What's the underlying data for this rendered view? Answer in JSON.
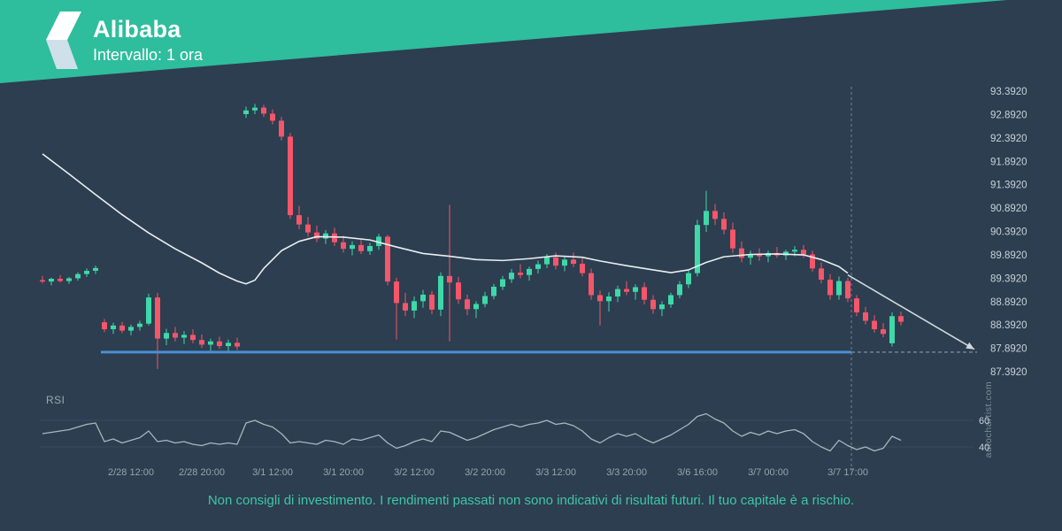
{
  "header": {
    "title": "Alibaba",
    "subtitle": "Intervallo: 1 ora"
  },
  "rsi_label": "RSI",
  "watermark": "autochartist.com",
  "disclaimer": "Non consigli di investimento. I rendimenti passati non sono indicativi di risultati futuri. Il tuo capitale è a rischio.",
  "colors": {
    "background": "#2c3e50",
    "banner": "#2ebd9d",
    "logo_primary": "#ffffff",
    "logo_secondary": "#cfe0ea",
    "bullish": "#3fd8a8",
    "bearish": "#f4566a",
    "ma_line": "#e9eef0",
    "support_line": "#4a8fd4",
    "forecast": "#cfd8dc",
    "muted_line": "#8a98a3",
    "rsi_line": "#aab6bd",
    "axis_text": "#c8d2d8",
    "muted_text": "#97a4ad",
    "disclaimer_text": "#3fc6a6"
  },
  "chart_data": {
    "type": "candlestick",
    "title": "Alibaba",
    "interval": "1 ora",
    "legend_position": "none",
    "grid": "off",
    "price_axis": {
      "max": 93.392,
      "min": 87.392,
      "tick_step": 0.5,
      "tick_labels": [
        "93.3920",
        "92.8920",
        "92.3920",
        "91.8920",
        "91.3920",
        "90.8920",
        "90.3920",
        "89.8920",
        "89.3920",
        "88.8920",
        "88.3920",
        "87.8920",
        "87.3920"
      ]
    },
    "x_axis": {
      "labels": [
        {
          "text": "2/28 12:00",
          "index": 10
        },
        {
          "text": "2/28 20:00",
          "index": 18
        },
        {
          "text": "3/1 12:00",
          "index": 26
        },
        {
          "text": "3/1 20:00",
          "index": 34
        },
        {
          "text": "3/2 12:00",
          "index": 42
        },
        {
          "text": "3/2 20:00",
          "index": 50
        },
        {
          "text": "3/3 12:00",
          "index": 58
        },
        {
          "text": "3/3 20:00",
          "index": 66
        },
        {
          "text": "3/6 16:00",
          "index": 74
        },
        {
          "text": "3/7 00:00",
          "index": 82
        },
        {
          "text": "3/7 17:00",
          "index": 91
        }
      ]
    },
    "candles": [
      [
        89.35,
        89.44,
        89.28,
        89.32
      ],
      [
        89.32,
        89.4,
        89.24,
        89.38
      ],
      [
        89.38,
        89.46,
        89.3,
        89.33
      ],
      [
        89.33,
        89.42,
        89.27,
        89.39
      ],
      [
        89.39,
        89.52,
        89.34,
        89.48
      ],
      [
        89.48,
        89.6,
        89.42,
        89.55
      ],
      [
        89.55,
        89.66,
        89.48,
        89.61
      ],
      [
        88.45,
        88.52,
        88.24,
        88.3
      ],
      [
        88.3,
        88.44,
        88.2,
        88.38
      ],
      [
        88.38,
        88.46,
        88.22,
        88.27
      ],
      [
        88.27,
        88.4,
        88.17,
        88.35
      ],
      [
        88.35,
        88.48,
        88.27,
        88.42
      ],
      [
        88.42,
        89.06,
        88.38,
        88.98
      ],
      [
        88.98,
        89.08,
        87.45,
        88.1
      ],
      [
        88.1,
        88.31,
        87.96,
        88.22
      ],
      [
        88.22,
        88.35,
        88.04,
        88.12
      ],
      [
        88.12,
        88.26,
        87.98,
        88.18
      ],
      [
        88.18,
        88.3,
        88.0,
        88.07
      ],
      [
        88.07,
        88.19,
        87.9,
        87.97
      ],
      [
        87.97,
        88.1,
        87.84,
        88.04
      ],
      [
        88.04,
        88.14,
        87.88,
        87.94
      ],
      [
        87.94,
        88.08,
        87.82,
        88.01
      ],
      [
        88.01,
        88.12,
        87.86,
        87.93
      ],
      [
        92.9,
        93.06,
        92.82,
        92.98
      ],
      [
        92.98,
        93.12,
        92.9,
        93.04
      ],
      [
        93.04,
        93.1,
        92.84,
        92.91
      ],
      [
        92.91,
        93.0,
        92.68,
        92.76
      ],
      [
        92.76,
        92.84,
        92.34,
        92.42
      ],
      [
        92.42,
        92.5,
        90.66,
        90.74
      ],
      [
        90.74,
        90.94,
        90.44,
        90.54
      ],
      [
        90.54,
        90.7,
        90.28,
        90.37
      ],
      [
        90.37,
        90.52,
        90.16,
        90.24
      ],
      [
        90.24,
        90.42,
        90.12,
        90.35
      ],
      [
        90.35,
        90.47,
        90.08,
        90.16
      ],
      [
        90.16,
        90.3,
        89.94,
        90.02
      ],
      [
        90.02,
        90.18,
        89.88,
        90.1
      ],
      [
        90.1,
        90.22,
        89.91,
        89.97
      ],
      [
        89.97,
        90.15,
        89.89,
        90.08
      ],
      [
        90.08,
        90.34,
        90.0,
        90.28
      ],
      [
        90.28,
        90.32,
        89.24,
        89.32
      ],
      [
        89.32,
        89.4,
        88.08,
        88.86
      ],
      [
        88.86,
        89.08,
        88.58,
        88.7
      ],
      [
        88.7,
        89.0,
        88.54,
        88.9
      ],
      [
        88.9,
        89.14,
        88.76,
        89.04
      ],
      [
        89.04,
        89.12,
        88.62,
        88.72
      ],
      [
        88.72,
        89.52,
        88.58,
        89.44
      ],
      [
        89.44,
        90.96,
        88.04,
        89.3
      ],
      [
        89.3,
        89.42,
        88.84,
        88.94
      ],
      [
        88.94,
        89.04,
        88.6,
        88.73
      ],
      [
        88.73,
        88.9,
        88.54,
        88.84
      ],
      [
        88.84,
        89.1,
        88.77,
        89.01
      ],
      [
        89.01,
        89.27,
        88.94,
        89.21
      ],
      [
        89.21,
        89.44,
        89.14,
        89.37
      ],
      [
        89.37,
        89.59,
        89.29,
        89.51
      ],
      [
        89.51,
        89.69,
        89.39,
        89.46
      ],
      [
        89.46,
        89.64,
        89.34,
        89.59
      ],
      [
        89.59,
        89.77,
        89.49,
        89.69
      ],
      [
        89.69,
        89.91,
        89.61,
        89.84
      ],
      [
        89.84,
        89.94,
        89.58,
        89.66
      ],
      [
        89.66,
        89.87,
        89.54,
        89.79
      ],
      [
        89.79,
        89.94,
        89.63,
        89.7
      ],
      [
        89.7,
        89.83,
        89.43,
        89.5
      ],
      [
        89.5,
        89.6,
        88.93,
        89.03
      ],
      [
        89.03,
        89.13,
        88.38,
        88.9
      ],
      [
        88.9,
        89.09,
        88.68,
        89.0
      ],
      [
        89.0,
        89.23,
        88.88,
        89.16
      ],
      [
        89.16,
        89.33,
        89.03,
        89.1
      ],
      [
        89.1,
        89.26,
        88.93,
        89.2
      ],
      [
        89.2,
        89.3,
        88.83,
        88.93
      ],
      [
        88.93,
        89.03,
        88.63,
        88.73
      ],
      [
        88.73,
        88.9,
        88.58,
        88.83
      ],
      [
        88.83,
        89.08,
        88.76,
        89.03
      ],
      [
        89.03,
        89.33,
        88.96,
        89.26
      ],
      [
        89.26,
        89.58,
        89.18,
        89.5
      ],
      [
        89.5,
        90.64,
        89.43,
        90.53
      ],
      [
        90.53,
        91.26,
        90.38,
        90.83
      ],
      [
        90.83,
        90.98,
        90.53,
        90.66
      ],
      [
        90.66,
        90.8,
        90.33,
        90.43
      ],
      [
        90.43,
        90.58,
        89.93,
        90.03
      ],
      [
        90.03,
        90.18,
        89.73,
        89.83
      ],
      [
        89.83,
        89.98,
        89.68,
        89.9
      ],
      [
        89.9,
        90.03,
        89.76,
        89.86
      ],
      [
        89.86,
        89.98,
        89.73,
        89.93
      ],
      [
        89.93,
        90.06,
        89.83,
        89.88
      ],
      [
        89.88,
        90.0,
        89.78,
        89.96
      ],
      [
        89.96,
        90.08,
        89.86,
        90.0
      ],
      [
        90.0,
        90.1,
        89.83,
        89.9
      ],
      [
        89.9,
        89.98,
        89.53,
        89.6
      ],
      [
        89.6,
        89.73,
        89.28,
        89.36
      ],
      [
        89.36,
        89.48,
        88.93,
        89.03
      ],
      [
        89.03,
        89.43,
        88.93,
        89.33
      ],
      [
        89.33,
        89.4,
        88.88,
        88.96
      ],
      [
        88.96,
        89.03,
        88.58,
        88.66
      ],
      [
        88.66,
        88.78,
        88.4,
        88.48
      ],
      [
        88.48,
        88.6,
        88.23,
        88.3
      ],
      [
        88.3,
        88.43,
        88.13,
        88.2
      ],
      [
        88.0,
        88.66,
        87.93,
        88.58
      ],
      [
        88.58,
        88.68,
        88.38,
        88.46
      ]
    ],
    "ma_points": [
      [
        0,
        92.05
      ],
      [
        3,
        91.62
      ],
      [
        6,
        91.18
      ],
      [
        9,
        90.75
      ],
      [
        12,
        90.36
      ],
      [
        15,
        90.02
      ],
      [
        18,
        89.72
      ],
      [
        20,
        89.5
      ],
      [
        22,
        89.33
      ],
      [
        23,
        89.27
      ],
      [
        24,
        89.35
      ],
      [
        25,
        89.6
      ],
      [
        27,
        89.98
      ],
      [
        29,
        90.18
      ],
      [
        31,
        90.28
      ],
      [
        34,
        90.27
      ],
      [
        37,
        90.21
      ],
      [
        40,
        90.06
      ],
      [
        43,
        89.92
      ],
      [
        46,
        89.86
      ],
      [
        49,
        89.79
      ],
      [
        52,
        89.77
      ],
      [
        55,
        89.81
      ],
      [
        58,
        89.87
      ],
      [
        61,
        89.84
      ],
      [
        63,
        89.76
      ],
      [
        66,
        89.66
      ],
      [
        69,
        89.57
      ],
      [
        71,
        89.51
      ],
      [
        73,
        89.57
      ],
      [
        75,
        89.73
      ],
      [
        77,
        89.85
      ],
      [
        80,
        89.9
      ],
      [
        83,
        89.91
      ],
      [
        86,
        89.89
      ],
      [
        88,
        89.79
      ],
      [
        90,
        89.64
      ],
      [
        91,
        89.5
      ]
    ],
    "support": {
      "price": 87.81,
      "start_index": 6.6,
      "end_index": 91.4,
      "extend_to_index": 105.6
    },
    "forecast_arrow": {
      "from": [
        91,
        89.46
      ],
      "to": [
        105.3,
        87.87
      ]
    },
    "event_line_index": 91.4,
    "rsi": {
      "ticks": [
        60,
        40
      ],
      "values": [
        50,
        51,
        52,
        53,
        55,
        57,
        58,
        44,
        46,
        43,
        45,
        47,
        52,
        44,
        45,
        43,
        44,
        42,
        41,
        43,
        42,
        43,
        42,
        58,
        60,
        57,
        55,
        50,
        43,
        44,
        43,
        42,
        45,
        44,
        42,
        46,
        45,
        47,
        49,
        43,
        39,
        41,
        44,
        46,
        44,
        52,
        51,
        48,
        45,
        47,
        50,
        53,
        55,
        57,
        55,
        57,
        58,
        60,
        57,
        58,
        56,
        52,
        46,
        43,
        47,
        50,
        48,
        50,
        46,
        43,
        46,
        49,
        53,
        57,
        63,
        65,
        61,
        58,
        52,
        48,
        51,
        49,
        52,
        50,
        52,
        53,
        50,
        44,
        40,
        37,
        45,
        41,
        38,
        40,
        37,
        39,
        48,
        45
      ]
    }
  }
}
